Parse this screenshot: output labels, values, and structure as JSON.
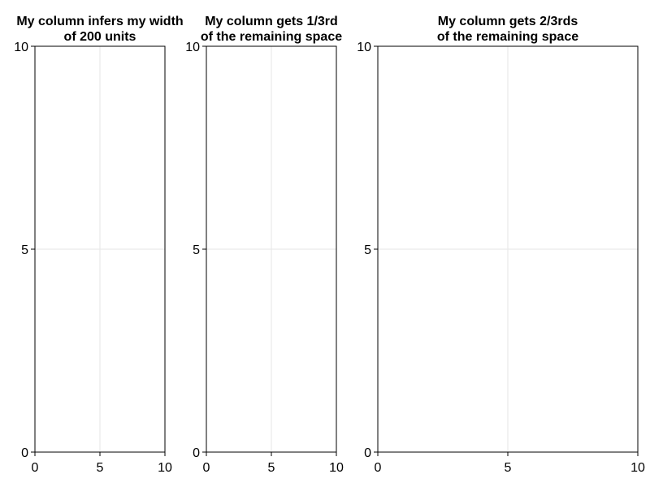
{
  "chart_data": [
    {
      "type": "scatter",
      "title": [
        "My column infers my width",
        "of 200 units"
      ],
      "xlabel": "",
      "ylabel": "",
      "xlim": [
        0,
        10
      ],
      "ylim": [
        0,
        10
      ],
      "xticks": [
        0,
        5,
        10
      ],
      "yticks": [
        0,
        5,
        10
      ],
      "grid": true,
      "series": []
    },
    {
      "type": "scatter",
      "title": [
        "My column gets 1/3rd",
        "of the remaining space"
      ],
      "xlabel": "",
      "ylabel": "",
      "xlim": [
        0,
        10
      ],
      "ylim": [
        0,
        10
      ],
      "xticks": [
        0,
        5,
        10
      ],
      "yticks": [
        0,
        5,
        10
      ],
      "grid": true,
      "series": []
    },
    {
      "type": "scatter",
      "title": [
        "My column gets 2/3rds",
        "of the remaining space"
      ],
      "xlabel": "",
      "ylabel": "",
      "xlim": [
        0,
        10
      ],
      "ylim": [
        0,
        10
      ],
      "xticks": [
        0,
        5,
        10
      ],
      "yticks": [
        0,
        5,
        10
      ],
      "grid": true,
      "series": []
    }
  ],
  "colors": {
    "background": "#ffffff",
    "axis": "#000000",
    "grid": "#e6e6e6",
    "text": "#000000"
  }
}
